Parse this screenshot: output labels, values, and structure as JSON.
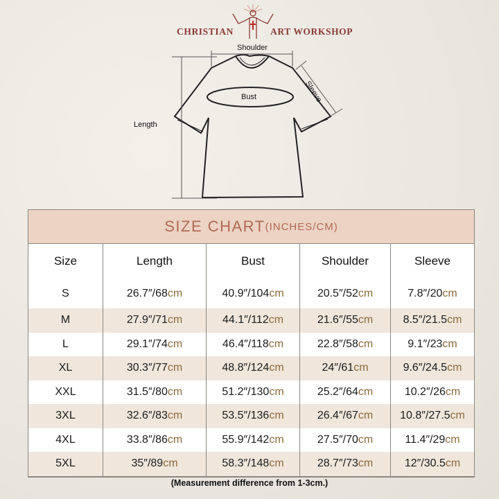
{
  "brand": {
    "left": "CHRISTIAN",
    "right": "ART WORKSHOP",
    "logo_icon": "jesus-radiant-cross-logo",
    "color": "#8a3a34"
  },
  "diagram": {
    "shoulder": "Shoulder",
    "sleeve": "Sleeve",
    "bust": "Bust",
    "length": "Length"
  },
  "table": {
    "title": "SIZE CHART",
    "title_units": "(INCHES/CM)",
    "unit": "cm",
    "headers": [
      "Size",
      "Length",
      "Bust",
      "Shoulder",
      "Sleeve"
    ],
    "rows": [
      [
        "S",
        "26.7″/68",
        "40.9″/104",
        "20.5″/52",
        "7.8″/20"
      ],
      [
        "M",
        "27.9″/71",
        "44.1″/112",
        "21.6″/55",
        "8.5″/21.5"
      ],
      [
        "L",
        "29.1″/74",
        "46.4″/118",
        "22.8″/58",
        "9.1″/23"
      ],
      [
        "XL",
        "30.3″/77",
        "48.8″/124",
        "24″/61",
        "9.6″/24.5"
      ],
      [
        "XXL",
        "31.5″/80",
        "51.2″/130",
        "25.2″/64",
        "10.2″/26"
      ],
      [
        "3XL",
        "32.6″/83",
        "53.5″/136",
        "26.4″/67",
        "10.8″/27.5"
      ],
      [
        "4XL",
        "33.8″/86",
        "55.9″/142",
        "27.5″/70",
        "11.4″/29"
      ],
      [
        "5XL",
        "35″/89",
        "58.3″/148",
        "28.7″/73",
        "12″/30.5"
      ]
    ],
    "colors": {
      "title_bg": "#ecd3c3",
      "title_text": "#b06a55",
      "stripe": "#f0e6dc",
      "unit": "#8a6a3a"
    }
  },
  "note": "(Measurement difference from 1-3cm.)"
}
